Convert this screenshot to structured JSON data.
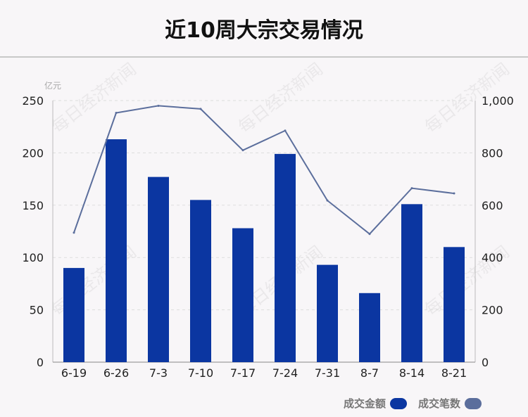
{
  "title": "近10周大宗交易情况",
  "watermark": "每日经济新闻",
  "colors": {
    "bar": "#0b36a1",
    "line": "#5b6e9c",
    "grid": "#dddddd",
    "axis": "#bbbbbb"
  },
  "chart_data": {
    "type": "bar",
    "categories": [
      "6-19",
      "6-26",
      "7-3",
      "7-10",
      "7-17",
      "7-24",
      "7-31",
      "8-7",
      "8-14",
      "8-21"
    ],
    "left_axis": {
      "unit": "亿元",
      "ylim": [
        0,
        250
      ],
      "ticks": [
        "0",
        "50",
        "100",
        "150",
        "200",
        "250"
      ]
    },
    "right_axis": {
      "ylim": [
        0,
        1000
      ],
      "ticks": [
        "0",
        "200",
        "400",
        "600",
        "800",
        "1,000"
      ]
    },
    "series": [
      {
        "name": "成交金额",
        "type": "bar",
        "axis": "left",
        "values": [
          90,
          213,
          177,
          155,
          128,
          199,
          93,
          66,
          151,
          110
        ]
      },
      {
        "name": "成交笔数",
        "type": "line",
        "axis": "right",
        "values": [
          495,
          953,
          980,
          968,
          810,
          885,
          618,
          490,
          665,
          645
        ]
      }
    ],
    "grid": true,
    "legend_position": "bottom-right"
  }
}
